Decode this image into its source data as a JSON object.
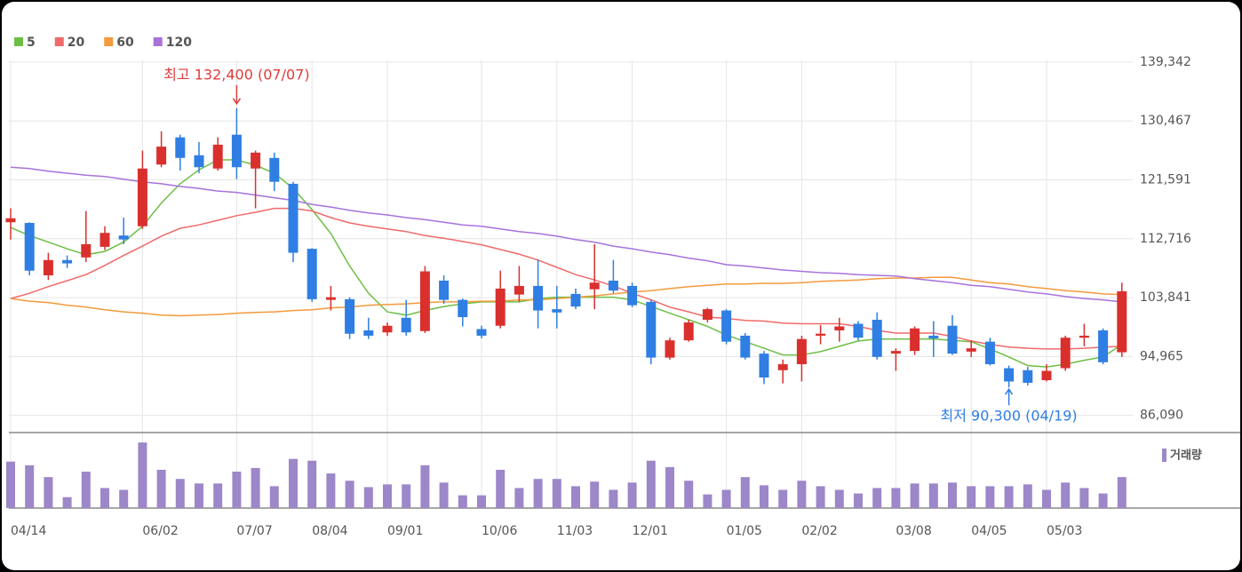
{
  "chart_data": {
    "type": "candlestick",
    "categories": [
      "04/14",
      null,
      null,
      null,
      null,
      null,
      null,
      "06/02",
      null,
      null,
      null,
      null,
      "07/07",
      null,
      null,
      null,
      "08/04",
      null,
      null,
      null,
      "09/01",
      null,
      null,
      null,
      null,
      "10/06",
      null,
      null,
      null,
      "11/03",
      null,
      null,
      null,
      "12/01",
      null,
      null,
      null,
      null,
      "01/05",
      null,
      null,
      null,
      "02/02",
      null,
      null,
      null,
      null,
      "03/08",
      null,
      null,
      null,
      "04/05",
      null,
      null,
      null,
      "05/03",
      null,
      null,
      null,
      null
    ],
    "open": [
      115200,
      115100,
      107200,
      109500,
      109900,
      111500,
      113200,
      114600,
      123900,
      128000,
      125300,
      123300,
      128400,
      123300,
      124900,
      121000,
      111200,
      103500,
      103600,
      98900,
      98600,
      100800,
      98800,
      106400,
      103500,
      99100,
      99600,
      104300,
      105600,
      102100,
      104400,
      105100,
      106400,
      105600,
      103200,
      94800,
      97400,
      100500,
      101900,
      98100,
      95400,
      92900,
      93800,
      98100,
      98900,
      99900,
      100500,
      95400,
      95800,
      98100,
      99600,
      95700,
      97200,
      93200,
      92900,
      91400,
      93200,
      97800,
      98900,
      95600
    ],
    "high": [
      117300,
      115200,
      110600,
      110200,
      116900,
      114600,
      115900,
      126000,
      128900,
      128400,
      127300,
      128000,
      132400,
      126000,
      125700,
      121300,
      111300,
      105600,
      103900,
      100800,
      100100,
      103500,
      108600,
      107200,
      103700,
      99600,
      107900,
      108600,
      109600,
      105600,
      105200,
      111900,
      109500,
      106100,
      103500,
      97800,
      100500,
      102300,
      102100,
      98500,
      95800,
      94500,
      98100,
      99700,
      100800,
      100300,
      101600,
      96200,
      99500,
      100300,
      101200,
      97400,
      97800,
      93600,
      93400,
      93800,
      98100,
      99900,
      99200,
      106100
    ],
    "low": [
      112600,
      107200,
      106500,
      108300,
      109200,
      111000,
      111900,
      114200,
      123500,
      123000,
      122600,
      123000,
      121700,
      117300,
      119900,
      109200,
      103200,
      101900,
      97600,
      97600,
      98100,
      98100,
      98500,
      102900,
      99500,
      97700,
      99200,
      103200,
      99200,
      99200,
      102100,
      102100,
      104500,
      102400,
      93800,
      94500,
      97200,
      100100,
      96800,
      94500,
      90800,
      90900,
      91200,
      96800,
      97200,
      97400,
      94500,
      92800,
      95200,
      94900,
      95200,
      94900,
      93600,
      90300,
      90600,
      91200,
      92800,
      96500,
      93800,
      94900
    ],
    "close": [
      115800,
      107900,
      109500,
      109000,
      111900,
      113600,
      112600,
      123300,
      126600,
      124900,
      123500,
      126900,
      123500,
      125700,
      121300,
      110600,
      103600,
      103900,
      98400,
      98100,
      99600,
      98600,
      107800,
      103500,
      100900,
      98100,
      105200,
      105600,
      101900,
      101600,
      102500,
      106100,
      104900,
      102700,
      94800,
      97400,
      100100,
      102100,
      97200,
      94800,
      91800,
      93800,
      97600,
      98400,
      99500,
      97800,
      94900,
      95800,
      99200,
      97700,
      95400,
      96200,
      93800,
      91200,
      91000,
      92800,
      97800,
      98100,
      94100,
      104800
    ],
    "up_color": "#d9302e",
    "down_color": "#2f7ee3",
    "series": [
      {
        "name": "5",
        "color": "#6cbf45",
        "values": [
          114400,
          113200,
          112200,
          111200,
          110300,
          110800,
          112200,
          114600,
          118100,
          121000,
          123100,
          124600,
          124600,
          123800,
          122600,
          120300,
          117100,
          113500,
          108600,
          104500,
          101700,
          101200,
          101900,
          102500,
          102900,
          103200,
          103200,
          103200,
          103700,
          103900,
          103900,
          103900,
          103900,
          103500,
          102500,
          101500,
          100500,
          99500,
          98200,
          97200,
          96200,
          95200,
          95200,
          95700,
          96500,
          97300,
          97600,
          97600,
          97600,
          97600,
          97400,
          97200,
          96100,
          94900,
          93600,
          93400,
          93800,
          94400,
          94900,
          96800
        ]
      },
      {
        "name": "20",
        "color": "#f06a6a",
        "values": [
          103700,
          104500,
          105500,
          106400,
          107300,
          108700,
          110200,
          111600,
          113100,
          114300,
          114800,
          115500,
          116200,
          116700,
          117300,
          117300,
          116900,
          115900,
          115100,
          114600,
          114200,
          113800,
          113200,
          112800,
          112300,
          111800,
          111100,
          110400,
          109500,
          108400,
          107300,
          106500,
          105600,
          104500,
          103500,
          102400,
          101700,
          100900,
          100700,
          100400,
          100300,
          100000,
          99900,
          99900,
          99900,
          99500,
          98900,
          98500,
          98500,
          98500,
          98000,
          97300,
          96800,
          96400,
          96200,
          96100,
          96100,
          96200,
          96400,
          96500
        ]
      },
      {
        "name": "60",
        "color": "#f39a3c",
        "values": [
          103700,
          103300,
          103100,
          102700,
          102400,
          102000,
          101700,
          101500,
          101200,
          101100,
          101200,
          101300,
          101500,
          101600,
          101700,
          101900,
          102000,
          102300,
          102400,
          102700,
          102800,
          102900,
          103100,
          103200,
          103200,
          103300,
          103300,
          103500,
          103500,
          103700,
          103900,
          104100,
          104400,
          104700,
          104900,
          105200,
          105500,
          105700,
          105900,
          105900,
          106000,
          106000,
          106100,
          106300,
          106400,
          106500,
          106700,
          106800,
          106800,
          106900,
          106900,
          106500,
          106100,
          105900,
          105500,
          105200,
          104900,
          104700,
          104400,
          104300
        ]
      },
      {
        "name": "120",
        "color": "#a673db",
        "values": [
          123500,
          123300,
          122900,
          122600,
          122300,
          122100,
          121700,
          121300,
          121000,
          120600,
          120300,
          119900,
          119700,
          119300,
          118900,
          118500,
          117900,
          117500,
          117000,
          116600,
          116300,
          115900,
          115600,
          115200,
          114800,
          114600,
          114200,
          113800,
          113500,
          113100,
          112600,
          112200,
          111600,
          111200,
          110700,
          110300,
          109800,
          109400,
          108800,
          108600,
          108300,
          108000,
          107800,
          107600,
          107500,
          107300,
          107200,
          107100,
          106700,
          106400,
          106100,
          105700,
          105500,
          105100,
          104700,
          104400,
          104000,
          103700,
          103500,
          103200
        ]
      }
    ],
    "ylim": [
      83500,
      139600
    ],
    "yticks": [
      {
        "value": 86090,
        "label": "86,090"
      },
      {
        "value": 94965,
        "label": "94,965"
      },
      {
        "value": 103841,
        "label": "103,841"
      },
      {
        "value": 112716,
        "label": "112,716"
      },
      {
        "value": 121591,
        "label": "121,591"
      },
      {
        "value": 130467,
        "label": "130,467"
      },
      {
        "value": 139342,
        "label": "139,342"
      }
    ],
    "grid": true,
    "annotations": [
      {
        "text": "최고 132,400 (07/07)",
        "color": "#e23b3b"
      },
      {
        "text": "최저 90,300 (04/19)",
        "color": "#2f7ee3"
      }
    ],
    "volume": {
      "name": "거래량",
      "color": "#9c87c9",
      "ylim": [
        0,
        80
      ],
      "values": [
        51,
        47,
        34,
        12,
        40,
        22,
        20,
        72,
        42,
        32,
        27,
        27,
        40,
        44,
        24,
        54,
        52,
        38,
        30,
        23,
        26,
        26,
        47,
        28,
        14,
        14,
        42,
        22,
        32,
        32,
        24,
        29,
        20,
        28,
        52,
        45,
        30,
        15,
        20,
        34,
        25,
        20,
        30,
        24,
        20,
        16,
        22,
        22,
        27,
        27,
        28,
        24,
        24,
        24,
        26,
        20,
        28,
        22,
        16,
        34
      ]
    }
  }
}
